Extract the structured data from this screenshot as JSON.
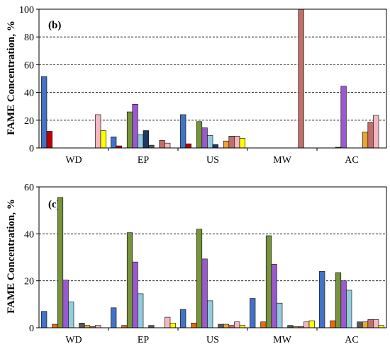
{
  "colors": [
    "#4472c4",
    "#c00000",
    "#e46c0a",
    "#77933c",
    "#9b59d0",
    "#93cddd",
    "#1f3864",
    "#595959",
    "#e8a33a",
    "#c0706a",
    "#f4b6c2",
    "#ffff00"
  ],
  "chart_data": [
    {
      "type": "bar",
      "panel_label": "(b)",
      "ylabel": "FAME Concentration, %",
      "ylim": [
        0,
        100
      ],
      "yticks": [
        0,
        20,
        40,
        60,
        80,
        100
      ],
      "grid": "horizontal-dashed",
      "categories": [
        "WD",
        "EP",
        "US",
        "MW",
        "AC"
      ],
      "series_values": [
        [
          51.5,
          12,
          0,
          0,
          0,
          0,
          0,
          0,
          0,
          0,
          24,
          12.5
        ],
        [
          8,
          1.5,
          0,
          26,
          31.5,
          9.5,
          12.5,
          2,
          0,
          5.5,
          3.5,
          0
        ],
        [
          24,
          3,
          0,
          19,
          14.5,
          9,
          2.5,
          0,
          5,
          8.5,
          8.5,
          7
        ],
        [
          0,
          0,
          0,
          0,
          0,
          0,
          0,
          0,
          0,
          100,
          0,
          0
        ],
        [
          0,
          0,
          0,
          0.5,
          44.5,
          0,
          0,
          0,
          11.5,
          18.5,
          23.5,
          0
        ]
      ]
    },
    {
      "type": "bar",
      "panel_label": "(c)",
      "ylabel": "FAME Concentration, %",
      "ylim": [
        0,
        60
      ],
      "yticks": [
        0,
        20,
        40,
        60
      ],
      "grid": "horizontal-dashed",
      "categories": [
        "WD",
        "EP",
        "US",
        "MW",
        "AC"
      ],
      "series_values": [
        [
          7,
          0,
          1.5,
          55.5,
          20.3,
          11,
          0,
          2,
          1,
          0.5,
          1,
          0
        ],
        [
          8.5,
          0,
          1,
          40.5,
          28,
          14.5,
          0,
          1,
          0,
          0,
          4.5,
          2
        ],
        [
          7.8,
          0,
          2,
          42,
          29.3,
          11.5,
          0,
          1.5,
          1.5,
          1,
          2.5,
          1
        ],
        [
          12.5,
          0,
          2.5,
          39.2,
          27,
          10.5,
          0,
          1,
          0.5,
          0.5,
          2.5,
          3
        ],
        [
          24,
          0,
          3,
          23.5,
          20,
          16,
          0,
          2.5,
          2.5,
          3.5,
          3.5,
          1
        ]
      ]
    }
  ]
}
